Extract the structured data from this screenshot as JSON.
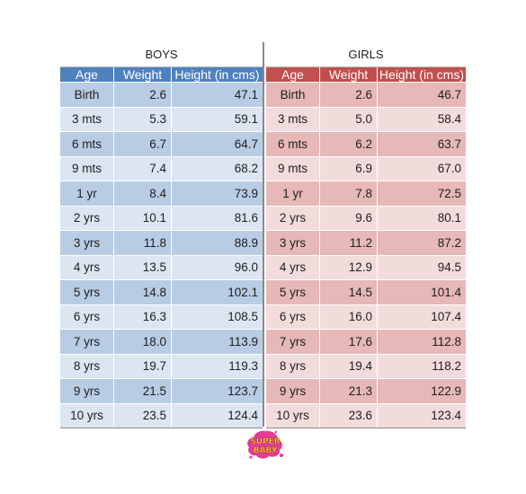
{
  "boys": {
    "title": "BOYS",
    "headers": [
      "Age",
      "Weight",
      "Height (in cms)"
    ],
    "rows": [
      [
        "Birth",
        "2.6",
        "47.1"
      ],
      [
        "3 mts",
        "5.3",
        "59.1"
      ],
      [
        "6 mts",
        "6.7",
        "64.7"
      ],
      [
        "9 mts",
        "7.4",
        "68.2"
      ],
      [
        "1 yr",
        "8.4",
        "73.9"
      ],
      [
        "2 yrs",
        "10.1",
        "81.6"
      ],
      [
        "3 yrs",
        "11.8",
        "88.9"
      ],
      [
        "4 yrs",
        "13.5",
        "96.0"
      ],
      [
        "5 yrs",
        "14.8",
        "102.1"
      ],
      [
        "6 yrs",
        "16.3",
        "108.5"
      ],
      [
        "7 yrs",
        "18.0",
        "113.9"
      ],
      [
        "8 yrs",
        "19.7",
        "119.3"
      ],
      [
        "9 yrs",
        "21.5",
        "123.7"
      ],
      [
        "10 yrs",
        "23.5",
        "124.4"
      ]
    ]
  },
  "girls": {
    "title": "GIRLS",
    "headers": [
      "Age",
      "Weight",
      "Height (in cms)"
    ],
    "rows": [
      [
        "Birth",
        "2.6",
        "46.7"
      ],
      [
        "3 mts",
        "5.0",
        "58.4"
      ],
      [
        "6 mts",
        "6.2",
        "63.7"
      ],
      [
        "9 mts",
        "6.9",
        "67.0"
      ],
      [
        "1 yr",
        "7.8",
        "72.5"
      ],
      [
        "2 yrs",
        "9.6",
        "80.1"
      ],
      [
        "3 yrs",
        "11.2",
        "87.2"
      ],
      [
        "4 yrs",
        "12.9",
        "94.5"
      ],
      [
        "5 yrs",
        "14.5",
        "101.4"
      ],
      [
        "6 yrs",
        "16.0",
        "107.4"
      ],
      [
        "7 yrs",
        "17.6",
        "112.8"
      ],
      [
        "8 yrs",
        "19.4",
        "118.2"
      ],
      [
        "9 yrs",
        "21.3",
        "122.9"
      ],
      [
        "10 yrs",
        "23.6",
        "123.4"
      ]
    ]
  },
  "logo": {
    "line1": "SUPER",
    "line2": "BABY",
    "icon": "superbaby-logo-icon"
  },
  "colors": {
    "boys_header": "#4f81bd",
    "boys_dark": "#b8cce4",
    "boys_light": "#dce6f1",
    "girls_header": "#c0504d",
    "girls_dark": "#e6b8b7",
    "girls_light": "#f2dcdb"
  }
}
